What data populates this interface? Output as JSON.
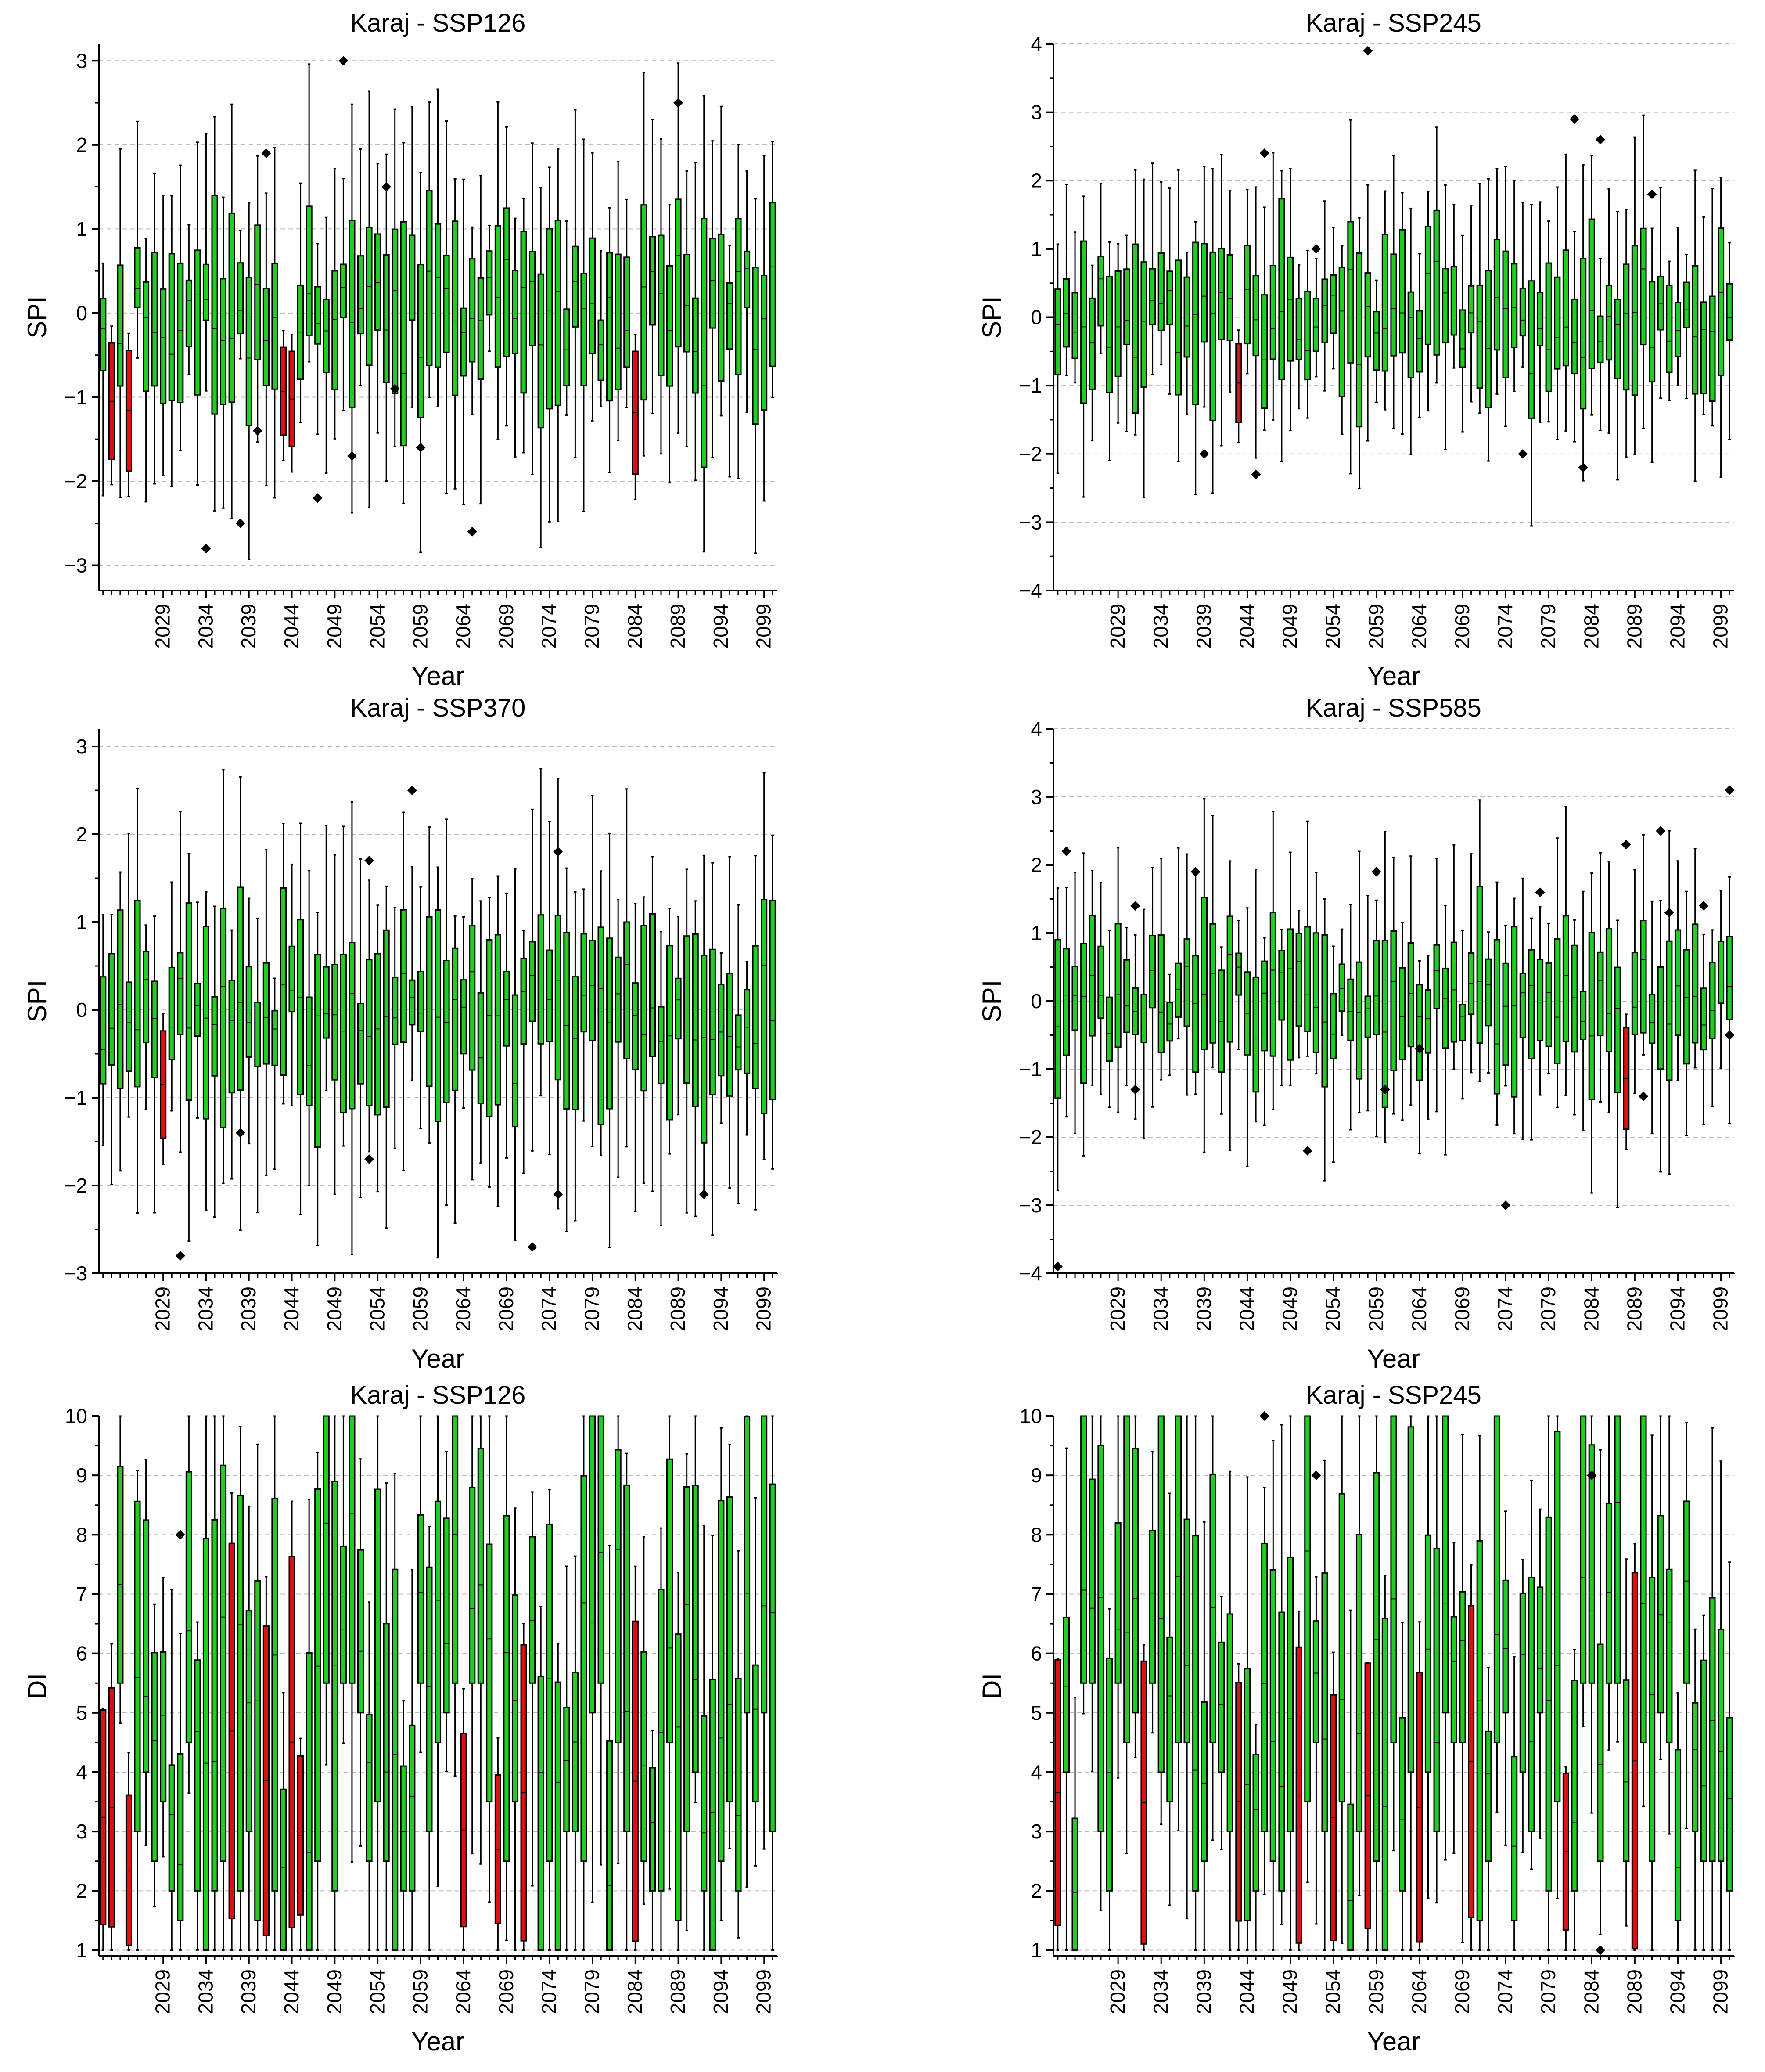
{
  "colors": {
    "normal": "#22cc22",
    "drought": "#dd1111",
    "outlier": "#000000",
    "grid": "#bbbbbb"
  },
  "years": {
    "start": 2022,
    "end": 2100
  },
  "x_tick_labels": [
    "2029",
    "2034",
    "2039",
    "2044",
    "2049",
    "2054",
    "2059",
    "2064",
    "2069",
    "2074",
    "2079",
    "2084",
    "2089",
    "2094",
    "2099"
  ],
  "chart_data": [
    {
      "type": "box",
      "title": "Karaj - SSP126",
      "xlabel": "Year",
      "ylabel": "SPI",
      "ylim": [
        -3.3,
        3.2
      ],
      "yticks": [
        -3,
        -2,
        -1,
        0,
        1,
        2,
        3
      ],
      "ytick_labels": [
        "−3",
        "−2",
        "−1",
        "0",
        "1",
        "2",
        "3"
      ],
      "grid": true,
      "seed": 11,
      "drought_years": [
        2023,
        2025,
        2043,
        2044,
        2084
      ],
      "outliers": [
        {
          "year": 2034,
          "value": -2.8
        },
        {
          "year": 2038,
          "value": -2.5
        },
        {
          "year": 2040,
          "value": -1.4
        },
        {
          "year": 2041,
          "value": 1.9
        },
        {
          "year": 2047,
          "value": -2.2
        },
        {
          "year": 2050,
          "value": 3.0
        },
        {
          "year": 2051,
          "value": -1.7
        },
        {
          "year": 2055,
          "value": 1.5
        },
        {
          "year": 2056,
          "value": -0.9
        },
        {
          "year": 2059,
          "value": -1.6
        },
        {
          "year": 2065,
          "value": -2.6
        },
        {
          "year": 2089,
          "value": 2.5
        }
      ]
    },
    {
      "type": "box",
      "title": "Karaj - SSP245",
      "xlabel": "Year",
      "ylabel": "SPI",
      "ylim": [
        -4,
        4
      ],
      "yticks": [
        -4,
        -3,
        -2,
        -1,
        0,
        1,
        2,
        3,
        4
      ],
      "ytick_labels": [
        "−4",
        "−3",
        "−2",
        "−1",
        "0",
        "1",
        "2",
        "3",
        "4"
      ],
      "grid": true,
      "seed": 23,
      "drought_years": [
        2043
      ],
      "outliers": [
        {
          "year": 2039,
          "value": -2.0
        },
        {
          "year": 2045,
          "value": -2.3
        },
        {
          "year": 2046,
          "value": 2.4
        },
        {
          "year": 2052,
          "value": 1.0
        },
        {
          "year": 2058,
          "value": 3.9
        },
        {
          "year": 2076,
          "value": -2.0
        },
        {
          "year": 2082,
          "value": 2.9
        },
        {
          "year": 2083,
          "value": -2.2
        },
        {
          "year": 2085,
          "value": 2.6
        },
        {
          "year": 2091,
          "value": 1.8
        }
      ]
    },
    {
      "type": "box",
      "title": "Karaj - SSP370",
      "xlabel": "Year",
      "ylabel": "SPI",
      "ylim": [
        -3,
        3.2
      ],
      "yticks": [
        -3,
        -2,
        -1,
        0,
        1,
        2,
        3
      ],
      "ytick_labels": [
        "−3",
        "−2",
        "−1",
        "0",
        "1",
        "2",
        "3"
      ],
      "grid": true,
      "seed": 37,
      "drought_years": [
        2029
      ],
      "outliers": [
        {
          "year": 2031,
          "value": -2.8
        },
        {
          "year": 2038,
          "value": -1.4
        },
        {
          "year": 2053,
          "value": 1.7
        },
        {
          "year": 2053,
          "value": -1.7
        },
        {
          "year": 2058,
          "value": 2.5
        },
        {
          "year": 2072,
          "value": -2.7
        },
        {
          "year": 2075,
          "value": 1.8
        },
        {
          "year": 2075,
          "value": -2.1
        },
        {
          "year": 2092,
          "value": -2.1
        }
      ]
    },
    {
      "type": "box",
      "title": "Karaj - SSP585",
      "xlabel": "Year",
      "ylabel": "SPI",
      "ylim": [
        -4,
        4
      ],
      "yticks": [
        -4,
        -3,
        -2,
        -1,
        0,
        1,
        2,
        3,
        4
      ],
      "ytick_labels": [
        "−4",
        "−3",
        "−2",
        "−1",
        "0",
        "1",
        "2",
        "3",
        "4"
      ],
      "grid": true,
      "seed": 51,
      "drought_years": [
        2088
      ],
      "outliers": [
        {
          "year": 2022,
          "value": -3.9
        },
        {
          "year": 2023,
          "value": 2.2
        },
        {
          "year": 2031,
          "value": 1.4
        },
        {
          "year": 2031,
          "value": -1.3
        },
        {
          "year": 2038,
          "value": 1.9
        },
        {
          "year": 2051,
          "value": -2.2
        },
        {
          "year": 2059,
          "value": 1.9
        },
        {
          "year": 2060,
          "value": -1.3
        },
        {
          "year": 2064,
          "value": -0.7
        },
        {
          "year": 2074,
          "value": -3.0
        },
        {
          "year": 2078,
          "value": 1.6
        },
        {
          "year": 2088,
          "value": 2.3
        },
        {
          "year": 2090,
          "value": -1.4
        },
        {
          "year": 2092,
          "value": 2.5
        },
        {
          "year": 2093,
          "value": 1.3
        },
        {
          "year": 2097,
          "value": 1.4
        },
        {
          "year": 2100,
          "value": 3.1
        },
        {
          "year": 2100,
          "value": -0.5
        }
      ]
    },
    {
      "type": "box",
      "title": "Karaj - SSP126",
      "xlabel": "Year",
      "ylabel": "DI",
      "ylim": [
        0.9,
        10
      ],
      "yticks": [
        1,
        2,
        3,
        4,
        5,
        6,
        7,
        8,
        9,
        10
      ],
      "ytick_labels": [
        "1",
        "2",
        "3",
        "4",
        "5",
        "6",
        "7",
        "8",
        "9",
        "10"
      ],
      "grid": true,
      "seed": 67,
      "drought_years": [
        2022,
        2023,
        2025,
        2037,
        2041,
        2044,
        2045,
        2064,
        2068,
        2071,
        2084
      ],
      "outliers": [
        {
          "year": 2031,
          "value": 8.0
        }
      ]
    },
    {
      "type": "box",
      "title": "Karaj - SSP245",
      "xlabel": "Year",
      "ylabel": "DI",
      "ylim": [
        0.9,
        10
      ],
      "yticks": [
        1,
        2,
        3,
        4,
        5,
        6,
        7,
        8,
        9,
        10
      ],
      "ytick_labels": [
        "1",
        "2",
        "3",
        "4",
        "5",
        "6",
        "7",
        "8",
        "9",
        "10"
      ],
      "grid": true,
      "seed": 79,
      "drought_years": [
        2022,
        2032,
        2043,
        2050,
        2054,
        2058,
        2064,
        2070,
        2081,
        2089
      ],
      "outliers": [
        {
          "year": 2046,
          "value": 10.0
        },
        {
          "year": 2052,
          "value": 9.0
        },
        {
          "year": 2084,
          "value": 9.0
        },
        {
          "year": 2085,
          "value": 1.0
        }
      ]
    }
  ]
}
